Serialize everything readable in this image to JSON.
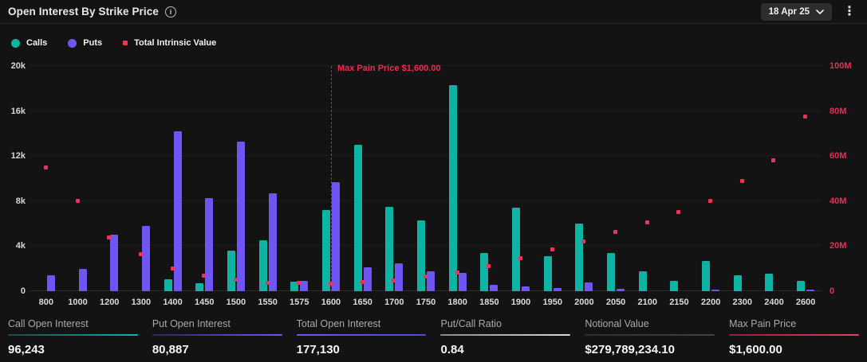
{
  "header": {
    "title": "Open Interest By Strike Price",
    "date_selector": "18 Apr 25"
  },
  "legend": [
    {
      "label": "Calls",
      "color": "#0fb3a4",
      "shape": "circle"
    },
    {
      "label": "Puts",
      "color": "#6f56f3",
      "shape": "circle"
    },
    {
      "label": "Total Intrinsic Value",
      "color": "#f0325a",
      "shape": "square"
    }
  ],
  "chart_data": {
    "type": "bar",
    "title": "Open Interest By Strike Price",
    "categories": [
      "800",
      "1000",
      "1200",
      "1300",
      "1400",
      "1450",
      "1500",
      "1550",
      "1575",
      "1600",
      "1650",
      "1700",
      "1750",
      "1800",
      "1850",
      "1900",
      "1950",
      "2000",
      "2050",
      "2100",
      "2150",
      "2200",
      "2300",
      "2400",
      "2600"
    ],
    "series": [
      {
        "name": "Calls",
        "type": "bar",
        "axis": "left",
        "color": "#0fb3a4",
        "values": [
          0,
          0,
          0,
          0,
          1050,
          700,
          3600,
          4500,
          850,
          7200,
          13000,
          7500,
          6300,
          18300,
          3400,
          7400,
          3100,
          6000,
          3400,
          1800,
          900,
          2700,
          1400,
          1550,
          950
        ]
      },
      {
        "name": "Puts",
        "type": "bar",
        "axis": "left",
        "color": "#6f56f3",
        "values": [
          1400,
          1950,
          5000,
          5800,
          14200,
          8250,
          13300,
          8700,
          900,
          9650,
          2150,
          2500,
          1800,
          1600,
          550,
          450,
          300,
          780,
          200,
          0,
          0,
          150,
          0,
          0,
          150
        ]
      },
      {
        "name": "Total Intrinsic Value",
        "type": "scatter",
        "axis": "right",
        "color": "#f0325a",
        "values_millions": [
          55,
          40,
          24,
          16.5,
          10,
          7,
          5,
          3.6,
          3.6,
          3.5,
          3.9,
          4.7,
          6.5,
          8.4,
          11.3,
          14.5,
          18.4,
          22,
          26.3,
          30.7,
          35,
          40,
          49,
          58,
          77.5
        ]
      }
    ],
    "left_axis": {
      "ticks": [
        "0",
        "4k",
        "8k",
        "12k",
        "16k",
        "20k"
      ],
      "max": 20000,
      "color": "#d6d6d6"
    },
    "right_axis": {
      "ticks": [
        "0",
        "20M",
        "40M",
        "60M",
        "80M",
        "100M"
      ],
      "max_millions": 100,
      "color": "#ed2c55"
    },
    "annotation": {
      "label": "Max Pain Price $1,600.00",
      "strike": "1600",
      "line_color": "#a83050",
      "text_color": "#ef2a52"
    },
    "grid": "horizontal",
    "legend_position": "top-left"
  },
  "stats": [
    {
      "label": "Call Open Interest",
      "value": "96,243",
      "accent": "#10b5a5",
      "accent2": "#1e4a43"
    },
    {
      "label": "Put Open Interest",
      "value": "80,887",
      "accent": "#6f56f3",
      "accent2": "#2e2560"
    },
    {
      "label": "Total Open Interest",
      "value": "177,130",
      "accent": "#4f49d8",
      "accent2": "#6f56f3"
    },
    {
      "label": "Put/Call Ratio",
      "value": "0.84",
      "accent": "#d8d8d8",
      "accent2": "#8a8a8a"
    },
    {
      "label": "Notional Value",
      "value": "$279,789,234.10",
      "accent": "#424242",
      "accent2": "#2e2e2e"
    },
    {
      "label": "Max Pain Price",
      "value": "$1,600.00",
      "accent": "#f03a60",
      "accent2": "#8f1f3e"
    }
  ]
}
